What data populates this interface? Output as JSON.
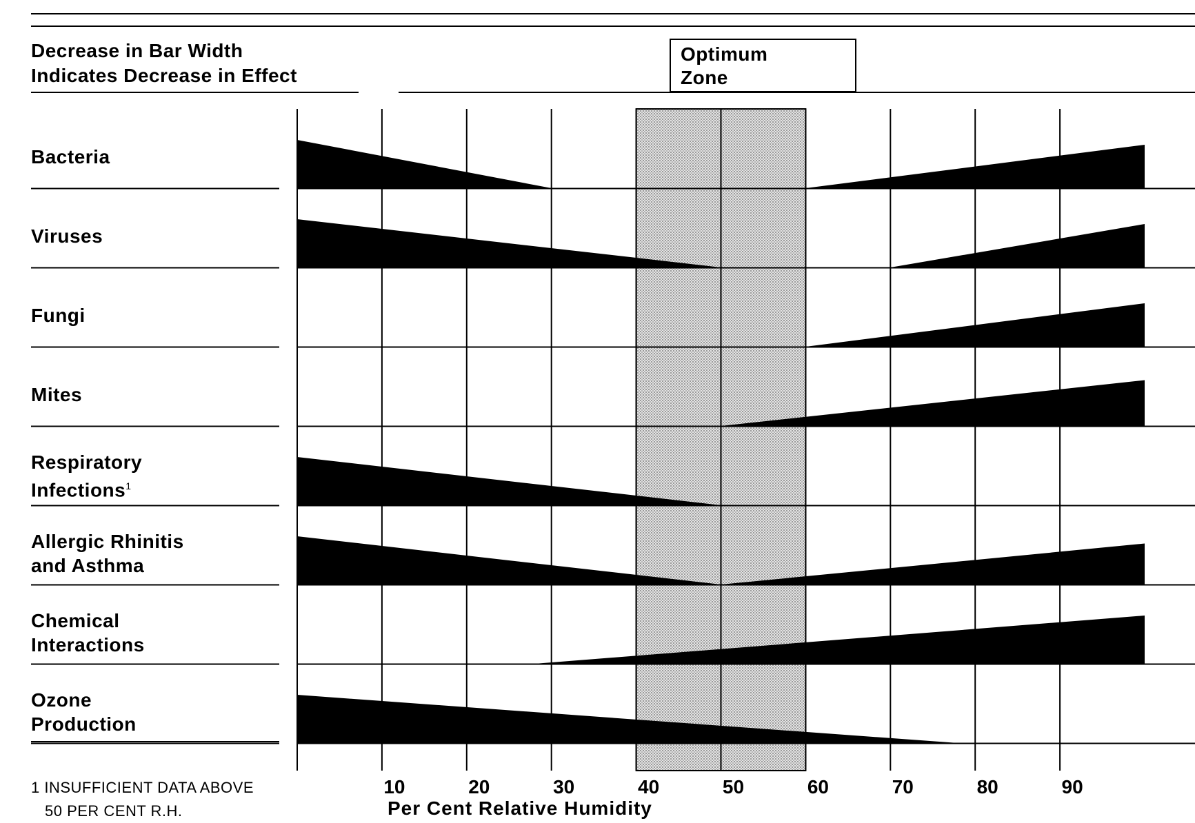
{
  "header": {
    "legend_line1": "Decrease in Bar Width",
    "legend_line2": "Indicates Decrease in Effect",
    "optimum_line1": "Optimum",
    "optimum_line2": "Zone"
  },
  "footnote": {
    "line1": "1 INSUFFICIENT DATA ABOVE",
    "line2": "50 PER CENT R.H."
  },
  "chart_data": {
    "type": "bar",
    "title": "",
    "xlabel": "Per Cent Relative Humidity",
    "ylabel": "",
    "xlim": [
      0,
      100
    ],
    "x_ticks": [
      10,
      20,
      30,
      40,
      50,
      60,
      70,
      80,
      90
    ],
    "optimum_zone": [
      40,
      60
    ],
    "grid": true,
    "colors": {
      "bar": "#000000",
      "optimum_fill": "#d3d3d3",
      "line": "#000000"
    },
    "series": [
      {
        "name": "Bacteria",
        "lines": [
          "Bacteria"
        ],
        "decreasing": {
          "from": 0,
          "to": 30,
          "max_width": 1.0
        },
        "increasing": {
          "from": 60,
          "to": 100,
          "max_width": 0.9
        }
      },
      {
        "name": "Viruses",
        "lines": [
          "Viruses"
        ],
        "decreasing": {
          "from": 0,
          "to": 50,
          "max_width": 1.0
        },
        "increasing": {
          "from": 70,
          "to": 100,
          "max_width": 0.9
        }
      },
      {
        "name": "Fungi",
        "lines": [
          "Fungi"
        ],
        "decreasing": null,
        "increasing": {
          "from": 60,
          "to": 100,
          "max_width": 0.9
        }
      },
      {
        "name": "Mites",
        "lines": [
          "Mites"
        ],
        "decreasing": null,
        "increasing": {
          "from": 50,
          "to": 100,
          "max_width": 0.95
        }
      },
      {
        "name": "Respiratory Infections",
        "lines": [
          "Respiratory",
          "Infections"
        ],
        "footnote_ref": "1",
        "decreasing": {
          "from": 0,
          "to": 50,
          "max_width": 1.0
        },
        "increasing": null
      },
      {
        "name": "Allergic Rhinitis and Asthma",
        "lines": [
          "Allergic Rhinitis",
          "and Asthma"
        ],
        "decreasing": {
          "from": 0,
          "to": 50,
          "max_width": 1.0
        },
        "increasing": {
          "from": 50,
          "to": 100,
          "max_width": 0.85
        }
      },
      {
        "name": "Chemical Interactions",
        "lines": [
          "Chemical",
          "Interactions"
        ],
        "decreasing": null,
        "increasing": {
          "from": 28,
          "to": 100,
          "max_width": 1.0
        }
      },
      {
        "name": "Ozone Production",
        "lines": [
          "Ozone",
          "Production"
        ],
        "decreasing": {
          "from": 0,
          "to": 78,
          "max_width": 1.0
        },
        "increasing": null
      }
    ]
  }
}
